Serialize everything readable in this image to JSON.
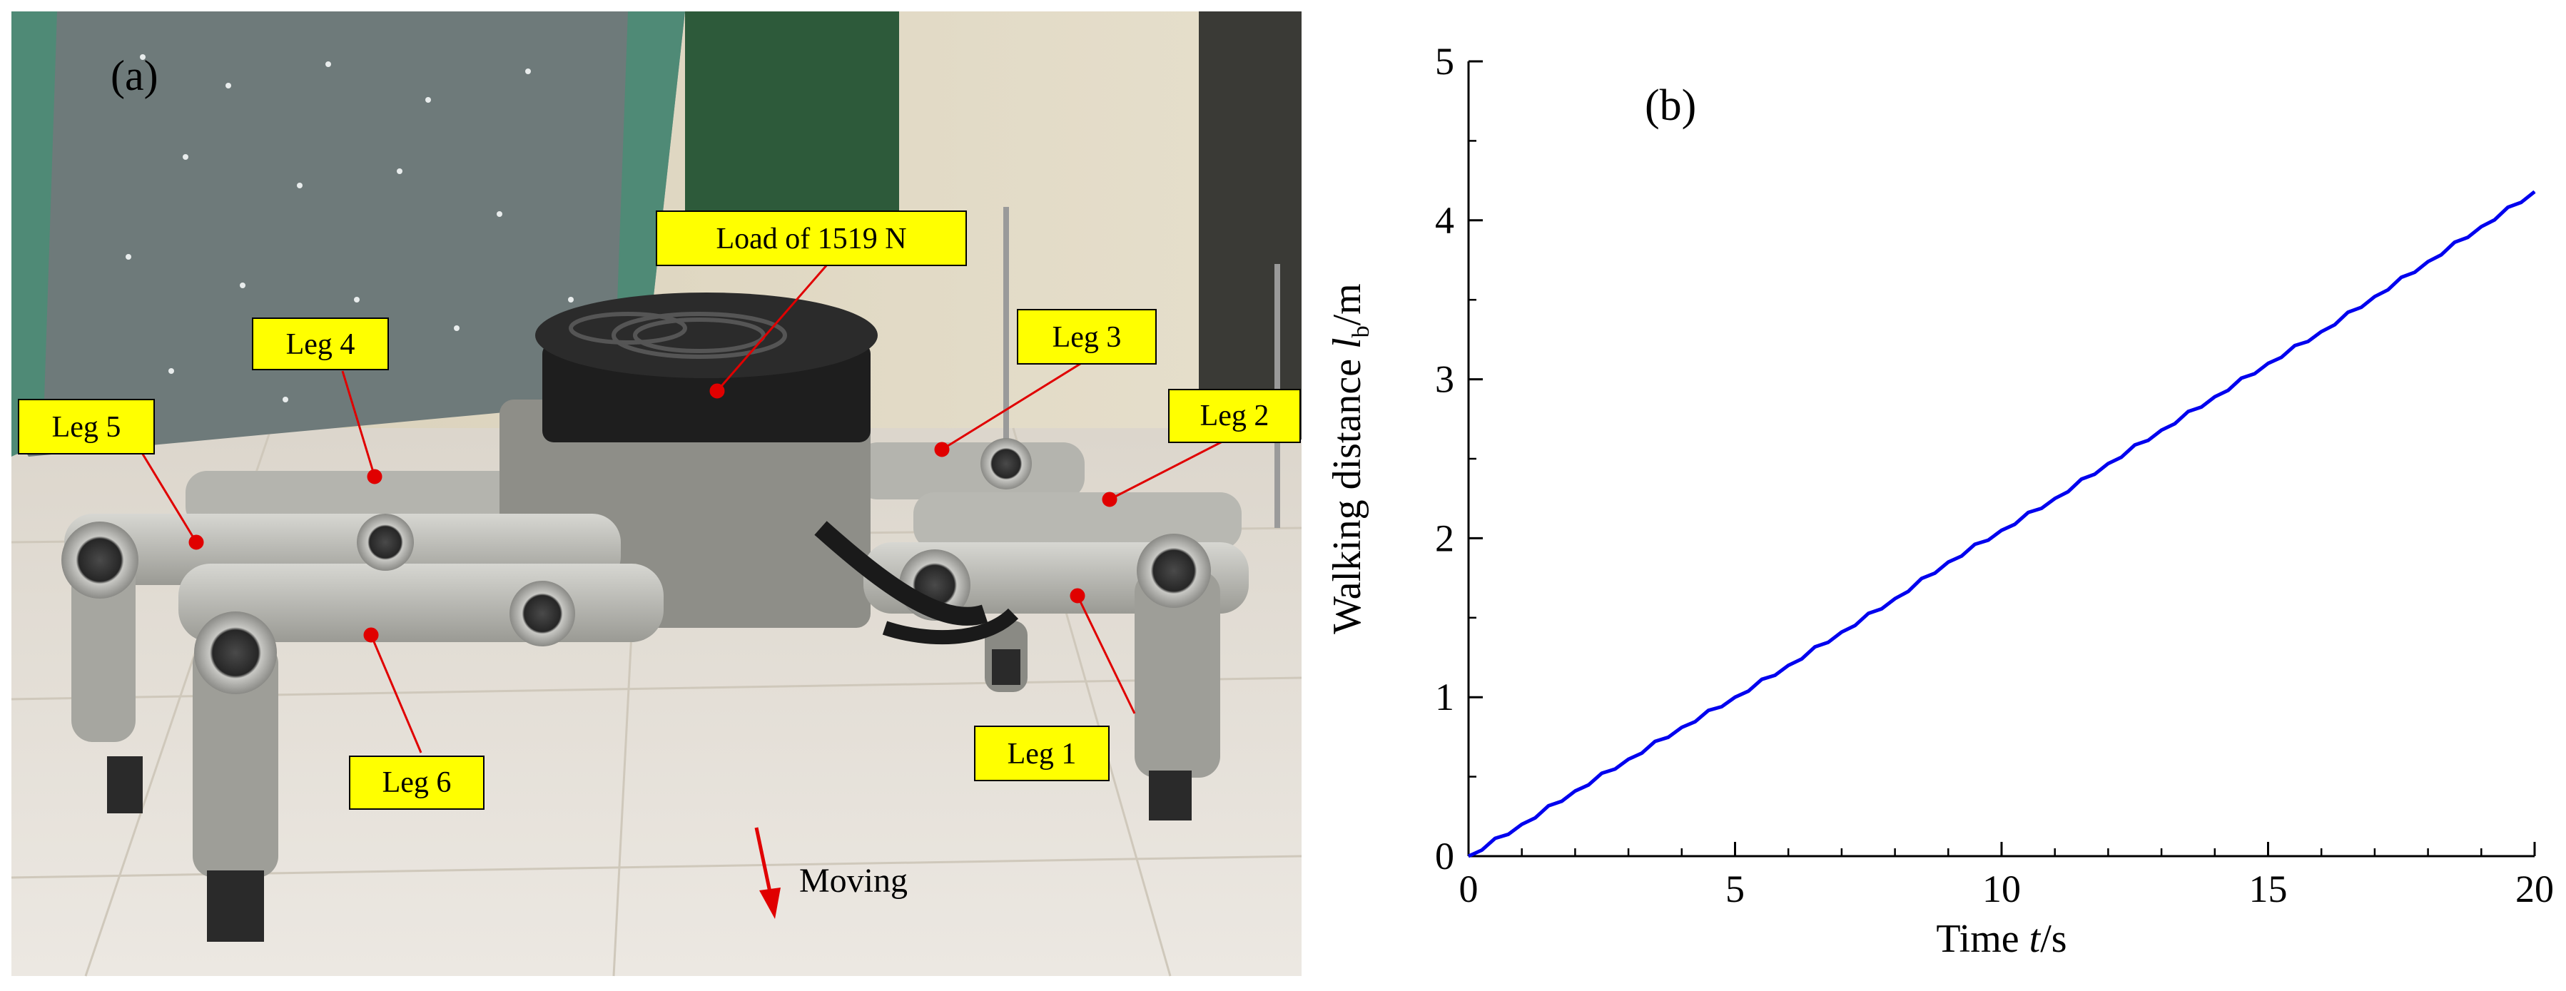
{
  "panels": {
    "a": {
      "panel_label": "(a)",
      "callouts": {
        "load": "Load of 1519 N",
        "leg1": "Leg 1",
        "leg2": "Leg 2",
        "leg3": "Leg 3",
        "leg4": "Leg 4",
        "leg5": "Leg 5",
        "leg6": "Leg 6"
      },
      "moving_label": "Moving",
      "colors": {
        "callout_fill": "#ffff00",
        "callout_stroke": "#000000",
        "pointer": "#e00000",
        "arrow": "#e00000"
      }
    },
    "b": {
      "panel_label": "(b)"
    }
  },
  "chart_data": {
    "type": "line",
    "xlabel": {
      "prefix": "Time",
      "var": "t",
      "unit": "/s"
    },
    "ylabel": {
      "prefix": "Walking distance",
      "var": "l",
      "sub": "b",
      "unit": "/m"
    },
    "xlim": [
      0,
      20
    ],
    "ylim": [
      0,
      5
    ],
    "x_ticks": [
      0,
      5,
      10,
      15,
      20
    ],
    "y_ticks": [
      0,
      1,
      2,
      3,
      4,
      5
    ],
    "x_tick_labels": [
      "0",
      "5",
      "10",
      "15",
      "20"
    ],
    "y_tick_labels": [
      "0",
      "1",
      "2",
      "3",
      "4",
      "5"
    ],
    "x_minor_step": 1,
    "y_minor_step": 0.5,
    "grid": false,
    "series": [
      {
        "color": "#0000ee",
        "x": [
          0,
          1,
          2,
          3,
          4,
          5,
          6,
          7,
          8,
          9,
          10,
          11,
          12,
          13,
          14,
          15,
          16,
          17,
          18,
          19,
          20
        ],
        "y": [
          0,
          0.2,
          0.41,
          0.61,
          0.81,
          1.0,
          1.2,
          1.41,
          1.62,
          1.85,
          2.05,
          2.25,
          2.47,
          2.68,
          2.89,
          3.1,
          3.3,
          3.52,
          3.74,
          3.96,
          4.18
        ]
      }
    ]
  }
}
